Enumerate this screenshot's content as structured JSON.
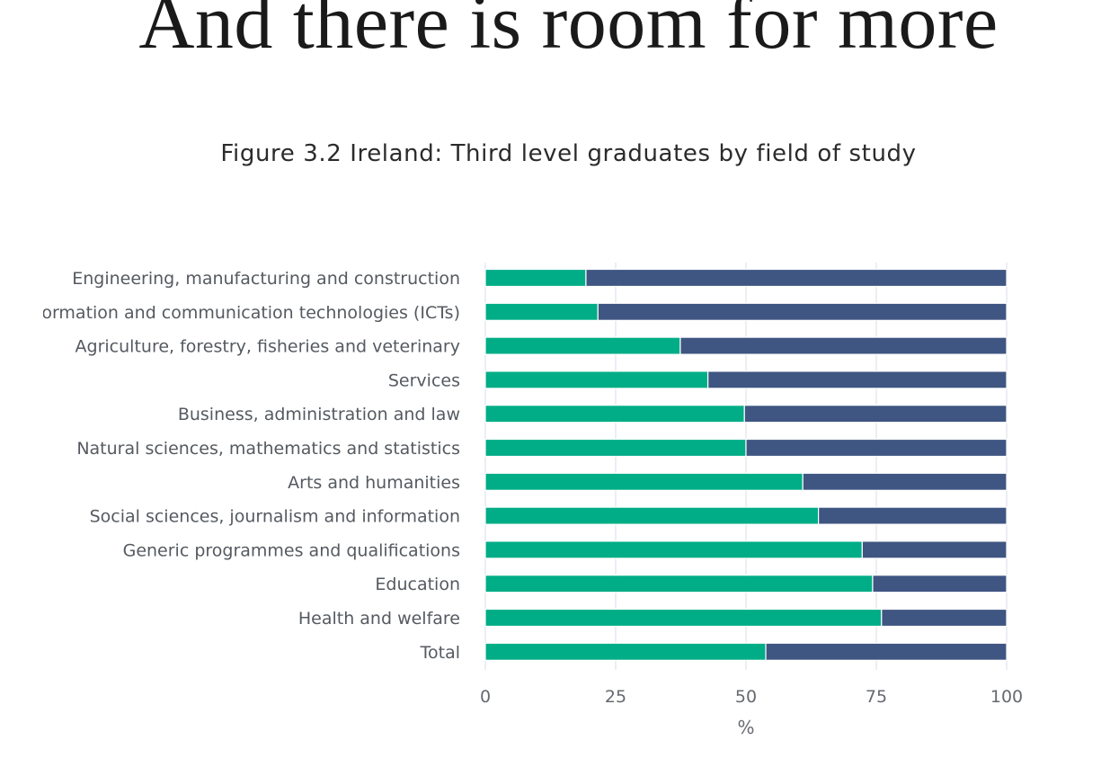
{
  "slide": {
    "title": "And there is room for more"
  },
  "colors": {
    "series_1": "#00ad86",
    "series_2": "#3f5582",
    "grid": "#e6e9ef",
    "text": "#555a60"
  },
  "chart_data": {
    "type": "bar",
    "orientation": "horizontal",
    "stacked": true,
    "title": "Figure 3.2 Ireland: Third level graduates by field of study",
    "xlabel": "%",
    "ylabel": "",
    "xlim": [
      0,
      100
    ],
    "xticks": [
      "0",
      "25",
      "50",
      "75",
      "100"
    ],
    "grid": true,
    "legend": "none",
    "categories": [
      "Engineering, manufacturing and construction",
      "Information and communication technologies (ICTs)",
      "Agriculture, forestry, fisheries and veterinary",
      "Services",
      "Business, administration and law",
      "Natural sciences, mathematics and statistics",
      "Arts and humanities",
      "Social sciences, journalism and information",
      "Generic programmes and qualifications",
      "Education",
      "Health and welfare",
      "Total"
    ],
    "series": [
      {
        "color": "#00ad86",
        "values": [
          19.3,
          21.6,
          37.4,
          42.7,
          49.7,
          50.0,
          60.9,
          63.9,
          72.3,
          74.3,
          76.0,
          53.8
        ]
      },
      {
        "color": "#3f5582",
        "values": [
          80.7,
          78.4,
          62.6,
          57.3,
          50.3,
          50.0,
          39.1,
          36.1,
          27.7,
          25.7,
          24.0,
          46.2
        ]
      }
    ]
  }
}
